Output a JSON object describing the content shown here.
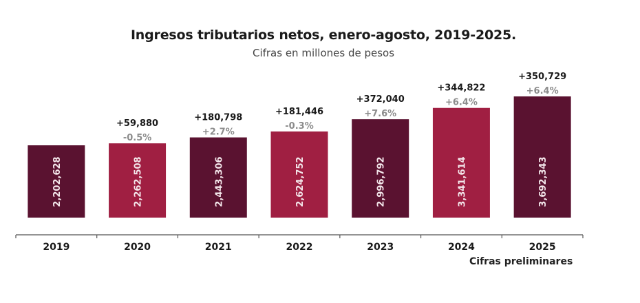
{
  "chart_data": {
    "type": "bar",
    "title": "Ingresos tributarios netos, enero-agosto, 2019-2025.",
    "subtitle": "Cifras en millones de pesos",
    "xlabel": "",
    "ylabel": "",
    "categories": [
      "2019",
      "2020",
      "2021",
      "2022",
      "2023",
      "2024",
      "2025"
    ],
    "values": [
      2202628,
      2262508,
      2443306,
      2624752,
      2996792,
      3341614,
      3692343
    ],
    "value_labels": [
      "2,202,628",
      "2,262,508",
      "2,443,306",
      "2,624,752",
      "2,996,792",
      "3,341,614",
      "3,692,343"
    ],
    "change_abs": [
      "",
      "+59,880",
      "+180,798",
      "+181,446",
      "+372,040",
      "+344,822",
      "+350,729"
    ],
    "change_pct": [
      "",
      "-0.5%",
      "+2.7%",
      "-0.3%",
      "+7.6%",
      "+6.4%",
      "+6.4%"
    ],
    "bar_colors": [
      "#5a1230",
      "#a01f42",
      "#5a1230",
      "#a01f42",
      "#5a1230",
      "#a01f42",
      "#5a1230"
    ],
    "ylim": [
      0,
      3692343
    ],
    "grid": false,
    "legend": "none",
    "note": "Cifras preliminares"
  }
}
